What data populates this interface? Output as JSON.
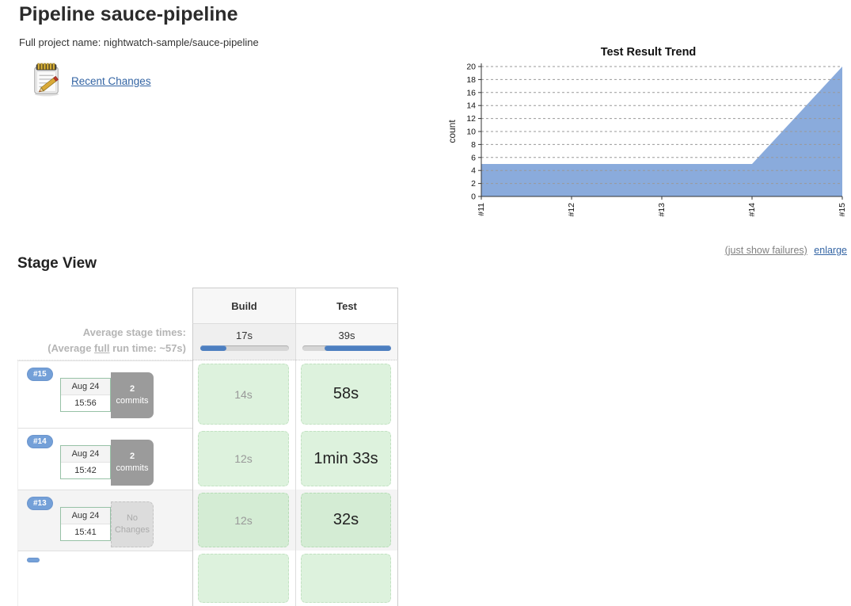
{
  "header": {
    "title": "Pipeline sauce-pipeline",
    "full_project_name": "Full project name: nightwatch-sample/sauce-pipeline",
    "recent_changes_label": "Recent Changes"
  },
  "chart_links": {
    "failures": "(just show failures)",
    "enlarge": "enlarge"
  },
  "chart_data": {
    "type": "area",
    "title": "Test Result Trend",
    "ylabel": "count",
    "categories": [
      "#11",
      "#12",
      "#13",
      "#14",
      "#15"
    ],
    "values": [
      5,
      5,
      5,
      5,
      20
    ],
    "ylim": [
      0,
      20
    ],
    "ytick_step": 2,
    "grid": "dashed-horizontal",
    "legend": "none"
  },
  "colors": {
    "area_fill": "#8aabdc",
    "bar_blue": "#4d7fc0",
    "badge_blue": "#74a0d8",
    "link_blue": "#3465a4",
    "success_green": "#ddf2dd"
  },
  "stage_view": {
    "heading": "Stage View",
    "columns": [
      "Build",
      "Test"
    ],
    "average": {
      "line1": "Average stage times:",
      "line2_prefix": "(Average ",
      "line2_underlined": "full",
      "line2_suffix": " run time: ~57s)",
      "times": [
        "17s",
        "39s"
      ],
      "bars": [
        {
          "left_pct": 0,
          "width_pct": 30
        },
        {
          "left_pct": 25,
          "width_pct": 75
        }
      ]
    },
    "rows": [
      {
        "build_number": "#15",
        "date": "Aug 24",
        "time": "15:56",
        "changes_lines": [
          "2",
          "commits"
        ],
        "has_changes": true,
        "shaded": false,
        "partial": false,
        "durations": [
          {
            "text": "14s",
            "emphasis": false
          },
          {
            "text": "58s",
            "emphasis": true
          }
        ]
      },
      {
        "build_number": "#14",
        "date": "Aug 24",
        "time": "15:42",
        "changes_lines": [
          "2",
          "commits"
        ],
        "has_changes": true,
        "shaded": false,
        "partial": false,
        "durations": [
          {
            "text": "12s",
            "emphasis": false
          },
          {
            "text": "1min 33s",
            "emphasis": true
          }
        ]
      },
      {
        "build_number": "#13",
        "date": "Aug 24",
        "time": "15:41",
        "changes_lines": [
          "No",
          "Changes"
        ],
        "has_changes": false,
        "shaded": true,
        "partial": false,
        "durations": [
          {
            "text": "12s",
            "emphasis": false
          },
          {
            "text": "32s",
            "emphasis": true
          }
        ]
      },
      {
        "build_number": "",
        "date": "",
        "time": "",
        "changes_lines": [],
        "has_changes": false,
        "shaded": false,
        "partial": true,
        "durations": [
          {
            "text": "",
            "emphasis": false
          },
          {
            "text": "",
            "emphasis": false
          }
        ]
      }
    ]
  }
}
